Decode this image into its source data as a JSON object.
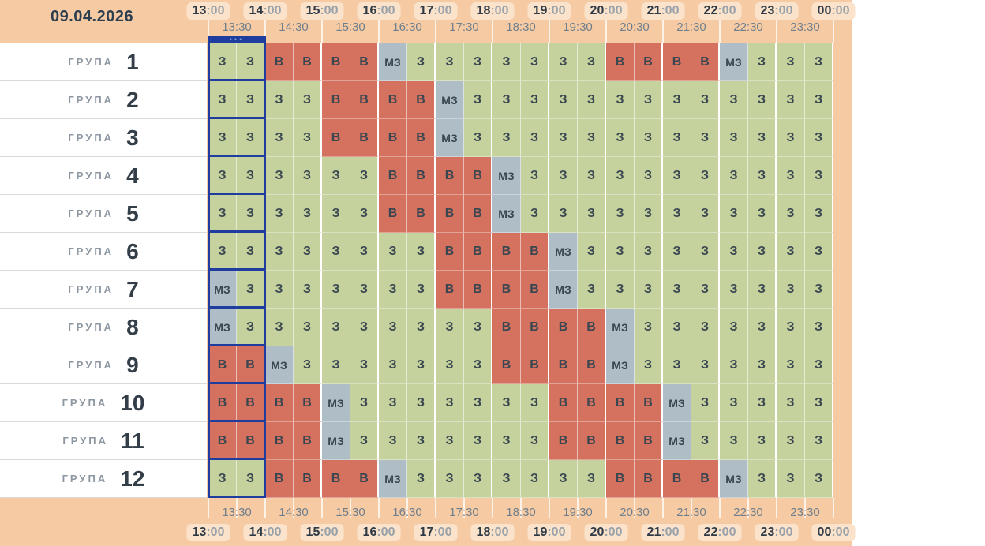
{
  "date": "09.04.2026",
  "timeline": {
    "hours": [
      {
        "h": "13",
        "suffix": ":00"
      },
      {
        "h": "14",
        "suffix": ":00"
      },
      {
        "h": "15",
        "suffix": ":00"
      },
      {
        "h": "16",
        "suffix": ":00"
      },
      {
        "h": "17",
        "suffix": ":00"
      },
      {
        "h": "18",
        "suffix": ":00"
      },
      {
        "h": "19",
        "suffix": ":00"
      },
      {
        "h": "20",
        "suffix": ":00"
      },
      {
        "h": "21",
        "suffix": ":00"
      },
      {
        "h": "22",
        "suffix": ":00"
      },
      {
        "h": "23",
        "suffix": ":00"
      },
      {
        "h": "00",
        "suffix": ":00"
      }
    ],
    "half_hours": [
      "13:30",
      "14:30",
      "15:30",
      "16:30",
      "17:30",
      "18:30",
      "19:30",
      "20:30",
      "21:30",
      "22:30",
      "23:30"
    ]
  },
  "selected": {
    "hour_index": 0,
    "menu_dots": "•••"
  },
  "groups": [
    {
      "label": "ГРУПА",
      "number": "1",
      "cells": [
        "З",
        "З",
        "В",
        "В",
        "В",
        "В",
        "МЗ",
        "З",
        "З",
        "З",
        "З",
        "З",
        "З",
        "З",
        "В",
        "В",
        "В",
        "В",
        "МЗ",
        "З",
        "З",
        "З"
      ]
    },
    {
      "label": "ГРУПА",
      "number": "2",
      "cells": [
        "З",
        "З",
        "З",
        "З",
        "В",
        "В",
        "В",
        "В",
        "МЗ",
        "З",
        "З",
        "З",
        "З",
        "З",
        "З",
        "З",
        "З",
        "З",
        "З",
        "З",
        "З",
        "З"
      ]
    },
    {
      "label": "ГРУПА",
      "number": "3",
      "cells": [
        "З",
        "З",
        "З",
        "З",
        "В",
        "В",
        "В",
        "В",
        "МЗ",
        "З",
        "З",
        "З",
        "З",
        "З",
        "З",
        "З",
        "З",
        "З",
        "З",
        "З",
        "З",
        "З"
      ]
    },
    {
      "label": "ГРУПА",
      "number": "4",
      "cells": [
        "З",
        "З",
        "З",
        "З",
        "З",
        "З",
        "В",
        "В",
        "В",
        "В",
        "МЗ",
        "З",
        "З",
        "З",
        "З",
        "З",
        "З",
        "З",
        "З",
        "З",
        "З",
        "З"
      ]
    },
    {
      "label": "ГРУПА",
      "number": "5",
      "cells": [
        "З",
        "З",
        "З",
        "З",
        "З",
        "З",
        "В",
        "В",
        "В",
        "В",
        "МЗ",
        "З",
        "З",
        "З",
        "З",
        "З",
        "З",
        "З",
        "З",
        "З",
        "З",
        "З"
      ]
    },
    {
      "label": "ГРУПА",
      "number": "6",
      "cells": [
        "З",
        "З",
        "З",
        "З",
        "З",
        "З",
        "З",
        "З",
        "В",
        "В",
        "В",
        "В",
        "МЗ",
        "З",
        "З",
        "З",
        "З",
        "З",
        "З",
        "З",
        "З",
        "З"
      ]
    },
    {
      "label": "ГРУПА",
      "number": "7",
      "cells": [
        "МЗ",
        "З",
        "З",
        "З",
        "З",
        "З",
        "З",
        "З",
        "В",
        "В",
        "В",
        "В",
        "МЗ",
        "З",
        "З",
        "З",
        "З",
        "З",
        "З",
        "З",
        "З",
        "З"
      ]
    },
    {
      "label": "ГРУПА",
      "number": "8",
      "cells": [
        "МЗ",
        "З",
        "З",
        "З",
        "З",
        "З",
        "З",
        "З",
        "З",
        "З",
        "В",
        "В",
        "В",
        "В",
        "МЗ",
        "З",
        "З",
        "З",
        "З",
        "З",
        "З",
        "З"
      ]
    },
    {
      "label": "ГРУПА",
      "number": "9",
      "cells": [
        "В",
        "В",
        "МЗ",
        "З",
        "З",
        "З",
        "З",
        "З",
        "З",
        "З",
        "В",
        "В",
        "В",
        "В",
        "МЗ",
        "З",
        "З",
        "З",
        "З",
        "З",
        "З",
        "З"
      ]
    },
    {
      "label": "ГРУПА",
      "number": "10",
      "cells": [
        "В",
        "В",
        "В",
        "В",
        "МЗ",
        "З",
        "З",
        "З",
        "З",
        "З",
        "З",
        "З",
        "В",
        "В",
        "В",
        "В",
        "МЗ",
        "З",
        "З",
        "З",
        "З",
        "З"
      ]
    },
    {
      "label": "ГРУПА",
      "number": "11",
      "cells": [
        "В",
        "В",
        "В",
        "В",
        "МЗ",
        "З",
        "З",
        "З",
        "З",
        "З",
        "З",
        "З",
        "В",
        "В",
        "В",
        "В",
        "МЗ",
        "З",
        "З",
        "З",
        "З",
        "З"
      ]
    },
    {
      "label": "ГРУПА",
      "number": "12",
      "cells": [
        "З",
        "З",
        "В",
        "В",
        "В",
        "В",
        "МЗ",
        "З",
        "З",
        "З",
        "З",
        "З",
        "З",
        "З",
        "В",
        "В",
        "В",
        "В",
        "МЗ",
        "З",
        "З",
        "З"
      ]
    }
  ],
  "legend": {
    "on": "З",
    "off": "В",
    "maybe": "МЗ"
  },
  "colors": {
    "peach": "#f6cba4",
    "pill": "#fbe3cb",
    "green": "#c5d29e",
    "red": "#d4715f",
    "gray": "#aebdc6",
    "navy": "#1e3d9e"
  }
}
